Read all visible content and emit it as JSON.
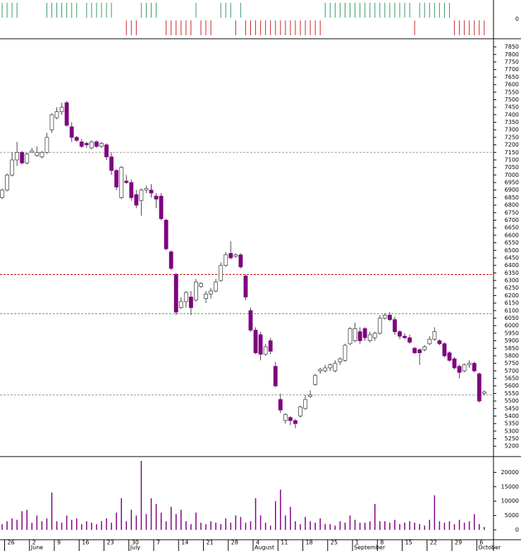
{
  "chart_data": {
    "type": "candlestick",
    "categories": [
      null,
      "26",
      null,
      null,
      null,
      null,
      "2",
      null,
      null,
      null,
      null,
      "9",
      null,
      null,
      null,
      null,
      "16",
      null,
      null,
      null,
      null,
      "23",
      null,
      null,
      null,
      null,
      "30",
      null,
      null,
      null,
      null,
      "7",
      null,
      null,
      null,
      null,
      "14",
      null,
      null,
      null,
      null,
      "21",
      null,
      null,
      null,
      null,
      "28",
      null,
      null,
      null,
      null,
      "4",
      null,
      null,
      null,
      null,
      "11",
      null,
      null,
      null,
      null,
      "18",
      null,
      null,
      null,
      null,
      "25",
      null,
      null,
      null,
      null,
      "1",
      null,
      null,
      null,
      null,
      "8",
      null,
      null,
      null,
      null,
      "15",
      null,
      null,
      null,
      null,
      "22",
      null,
      null,
      null,
      null,
      "29",
      null,
      null,
      null,
      null,
      "6",
      null
    ],
    "month_labels": [
      null,
      null,
      null,
      null,
      null,
      null,
      "June",
      null,
      null,
      null,
      null,
      null,
      null,
      null,
      null,
      null,
      null,
      null,
      null,
      null,
      null,
      null,
      null,
      null,
      null,
      null,
      "July",
      null,
      null,
      null,
      null,
      null,
      null,
      null,
      null,
      null,
      null,
      null,
      null,
      null,
      null,
      null,
      null,
      null,
      null,
      null,
      null,
      null,
      null,
      null,
      null,
      "August",
      null,
      null,
      null,
      null,
      null,
      null,
      null,
      null,
      null,
      null,
      null,
      null,
      null,
      null,
      null,
      null,
      null,
      null,
      null,
      "September",
      null,
      null,
      null,
      null,
      null,
      null,
      null,
      null,
      null,
      null,
      null,
      null,
      null,
      null,
      null,
      null,
      null,
      null,
      null,
      null,
      null,
      null,
      null,
      null,
      "October",
      null
    ],
    "open": [
      6850,
      6900,
      7000,
      7100,
      7150,
      7080,
      7150,
      7130,
      7120,
      7150,
      7300,
      7380,
      7420,
      7480,
      7320,
      7250,
      7220,
      7210,
      7180,
      7220,
      7190,
      7200,
      7120,
      7030,
      6850,
      6960,
      6950,
      6870,
      6830,
      6900,
      6900,
      6860,
      6860,
      6700,
      6490,
      6340,
      6120,
      6160,
      6190,
      6170,
      6260,
      6180,
      6210,
      6230,
      6300,
      6400,
      6480,
      6460,
      6470,
      6330,
      6100,
      5970,
      5940,
      5810,
      5900,
      5730,
      5510,
      5370,
      5390,
      5370,
      5400,
      5450,
      5530,
      5610,
      5700,
      5700,
      5720,
      5700,
      5760,
      5770,
      5880,
      5900,
      5960,
      5980,
      5900,
      5920,
      5950,
      6050,
      6070,
      6040,
      5960,
      5930,
      5920,
      5850,
      5840,
      5840,
      5880,
      5910,
      5900,
      5880,
      5820,
      5780,
      5730,
      5700,
      5740,
      5750,
      5680,
      5550
    ],
    "high": [
      6910,
      7010,
      7150,
      7220,
      7160,
      7150,
      7180,
      7190,
      7160,
      7280,
      7410,
      7450,
      7480,
      7490,
      7350,
      7260,
      7240,
      7220,
      7230,
      7230,
      7220,
      7210,
      7150,
      7040,
      7060,
      7000,
      6970,
      6900,
      6910,
      6930,
      6940,
      6880,
      6880,
      6710,
      6500,
      6350,
      6190,
      6230,
      6230,
      6310,
      6290,
      6230,
      6250,
      6310,
      6420,
      6490,
      6560,
      6480,
      6480,
      6340,
      6120,
      5990,
      5960,
      5880,
      5920,
      5760,
      5550,
      5420,
      5400,
      5380,
      5470,
      5540,
      5570,
      5680,
      5720,
      5740,
      5750,
      5770,
      5790,
      5880,
      5990,
      6020,
      5990,
      5990,
      5960,
      5960,
      6070,
      6080,
      6090,
      6060,
      5970,
      5950,
      5940,
      5860,
      5850,
      5870,
      5930,
      5990,
      5910,
      5890,
      5830,
      5790,
      5740,
      5750,
      5770,
      5760,
      5690,
      5570
    ],
    "low": [
      6840,
      6890,
      6990,
      7060,
      7070,
      7070,
      7150,
      7120,
      7110,
      7140,
      7280,
      7370,
      7400,
      7320,
      7220,
      7220,
      7180,
      7180,
      7170,
      7180,
      7180,
      7100,
      7000,
      6900,
      6840,
      6940,
      6830,
      6780,
      6730,
      6880,
      6850,
      6780,
      6700,
      6500,
      6370,
      6070,
      6110,
      6120,
      6070,
      6160,
      6250,
      6150,
      6180,
      6220,
      6290,
      6390,
      6440,
      6450,
      6380,
      6170,
      5960,
      5810,
      5770,
      5800,
      5810,
      5590,
      5420,
      5350,
      5340,
      5320,
      5390,
      5440,
      5520,
      5600,
      5680,
      5690,
      5700,
      5690,
      5740,
      5760,
      5870,
      5890,
      5880,
      5900,
      5890,
      5900,
      5940,
      6040,
      6030,
      5940,
      5910,
      5910,
      5880,
      5810,
      5740,
      5830,
      5870,
      5900,
      5870,
      5790,
      5760,
      5710,
      5650,
      5690,
      5720,
      5690,
      5490,
      5540
    ],
    "close": [
      6900,
      7000,
      7100,
      7150,
      7080,
      7140,
      7160,
      7150,
      7150,
      7250,
      7400,
      7420,
      7450,
      7330,
      7250,
      7230,
      7190,
      7200,
      7220,
      7190,
      7210,
      7120,
      7030,
      6920,
      7050,
      6950,
      6850,
      6800,
      6900,
      6910,
      6880,
      6840,
      6710,
      6510,
      6380,
      6090,
      6160,
      6220,
      6120,
      6290,
      6280,
      6210,
      6230,
      6290,
      6400,
      6470,
      6450,
      6470,
      6390,
      6190,
      5970,
      5820,
      5810,
      5860,
      5830,
      5600,
      5440,
      5410,
      5370,
      5350,
      5460,
      5510,
      5540,
      5670,
      5710,
      5720,
      5740,
      5750,
      5780,
      5870,
      5980,
      5980,
      5900,
      5920,
      5940,
      5950,
      6050,
      6070,
      6040,
      5960,
      5930,
      5920,
      5890,
      5820,
      5820,
      5860,
      5910,
      5960,
      5880,
      5800,
      5770,
      5720,
      5690,
      5740,
      5750,
      5700,
      5500,
      5560
    ],
    "up_color": "#ffffff",
    "down_color": "#800080",
    "ylim": [
      5145,
      7895
    ],
    "yticks": [
      5200,
      5250,
      5300,
      5350,
      5400,
      5450,
      5500,
      5550,
      5600,
      5650,
      5700,
      5750,
      5800,
      5850,
      5900,
      5950,
      6000,
      6050,
      6100,
      6150,
      6200,
      6250,
      6300,
      6350,
      6400,
      6450,
      6500,
      6550,
      6600,
      6650,
      6700,
      6750,
      6800,
      6850,
      6900,
      6950,
      7000,
      7050,
      7100,
      7150,
      7200,
      7250,
      7300,
      7350,
      7400,
      7450,
      7500,
      7550,
      7600,
      7650,
      7700,
      7750,
      7800,
      7850
    ],
    "hlines": [
      {
        "value": 7150,
        "color": "#999999"
      },
      {
        "value": 6340,
        "color": "#cc0000"
      },
      {
        "value": 6080,
        "color": "#33aa33"
      },
      {
        "value": 5540,
        "color": "#999999"
      }
    ],
    "volume": [
      2000,
      3000,
      4000,
      3500,
      6500,
      7000,
      2500,
      5000,
      3000,
      4000,
      13000,
      3000,
      2500,
      5000,
      3500,
      4000,
      2000,
      3000,
      2500,
      2000,
      3000,
      4000,
      2500,
      6000,
      11000,
      3000,
      7000,
      5000,
      24000,
      5500,
      11000,
      9000,
      6000,
      3000,
      8000,
      5500,
      7000,
      3000,
      2000,
      6000,
      2500,
      2000,
      3000,
      2500,
      2000,
      4000,
      2500,
      5000,
      4500,
      2500,
      3000,
      11000,
      5000,
      2500,
      1500,
      10000,
      14000,
      5000,
      8000,
      3000,
      2000,
      4500,
      3000,
      2500,
      4000,
      2000,
      2000,
      1500,
      3000,
      2500,
      5000,
      3500,
      2500,
      2500,
      3000,
      9000,
      3000,
      3000,
      2500,
      3500,
      2000,
      2500,
      3000,
      2500,
      2000,
      1500,
      3500,
      12000,
      3000,
      2500,
      3000,
      2000,
      3500,
      2500,
      3000,
      5500,
      2000,
      1000
    ],
    "volume_color": "#800080",
    "vlim": [
      0,
      25000
    ],
    "vticks": [
      0,
      5000,
      10000,
      15000,
      20000
    ],
    "signal": [
      1,
      1,
      1,
      1,
      0,
      0,
      0,
      0,
      0,
      1,
      1,
      1,
      1,
      1,
      1,
      1,
      0,
      1,
      1,
      1,
      1,
      1,
      1,
      0,
      0,
      -1,
      -1,
      -1,
      1,
      1,
      1,
      1,
      0,
      -1,
      -1,
      -1,
      -1,
      -1,
      -1,
      1,
      -1,
      -1,
      -1,
      0,
      1,
      1,
      1,
      -1,
      1,
      -1,
      -1,
      -1,
      -1,
      -1,
      -1,
      -1,
      -1,
      -1,
      -1,
      -1,
      -1,
      -1,
      -1,
      -1,
      -1,
      1,
      1,
      1,
      1,
      1,
      1,
      1,
      1,
      1,
      1,
      1,
      1,
      1,
      1,
      1,
      1,
      1,
      1,
      -1,
      1,
      1,
      1,
      1,
      1,
      1,
      1,
      -1,
      -1,
      -1,
      -1,
      -1,
      -1,
      -1
    ],
    "signal_up_color": "#339966",
    "signal_down_color": "#cc2222",
    "slim": [
      -1,
      1
    ],
    "sticks": [
      0
    ]
  }
}
